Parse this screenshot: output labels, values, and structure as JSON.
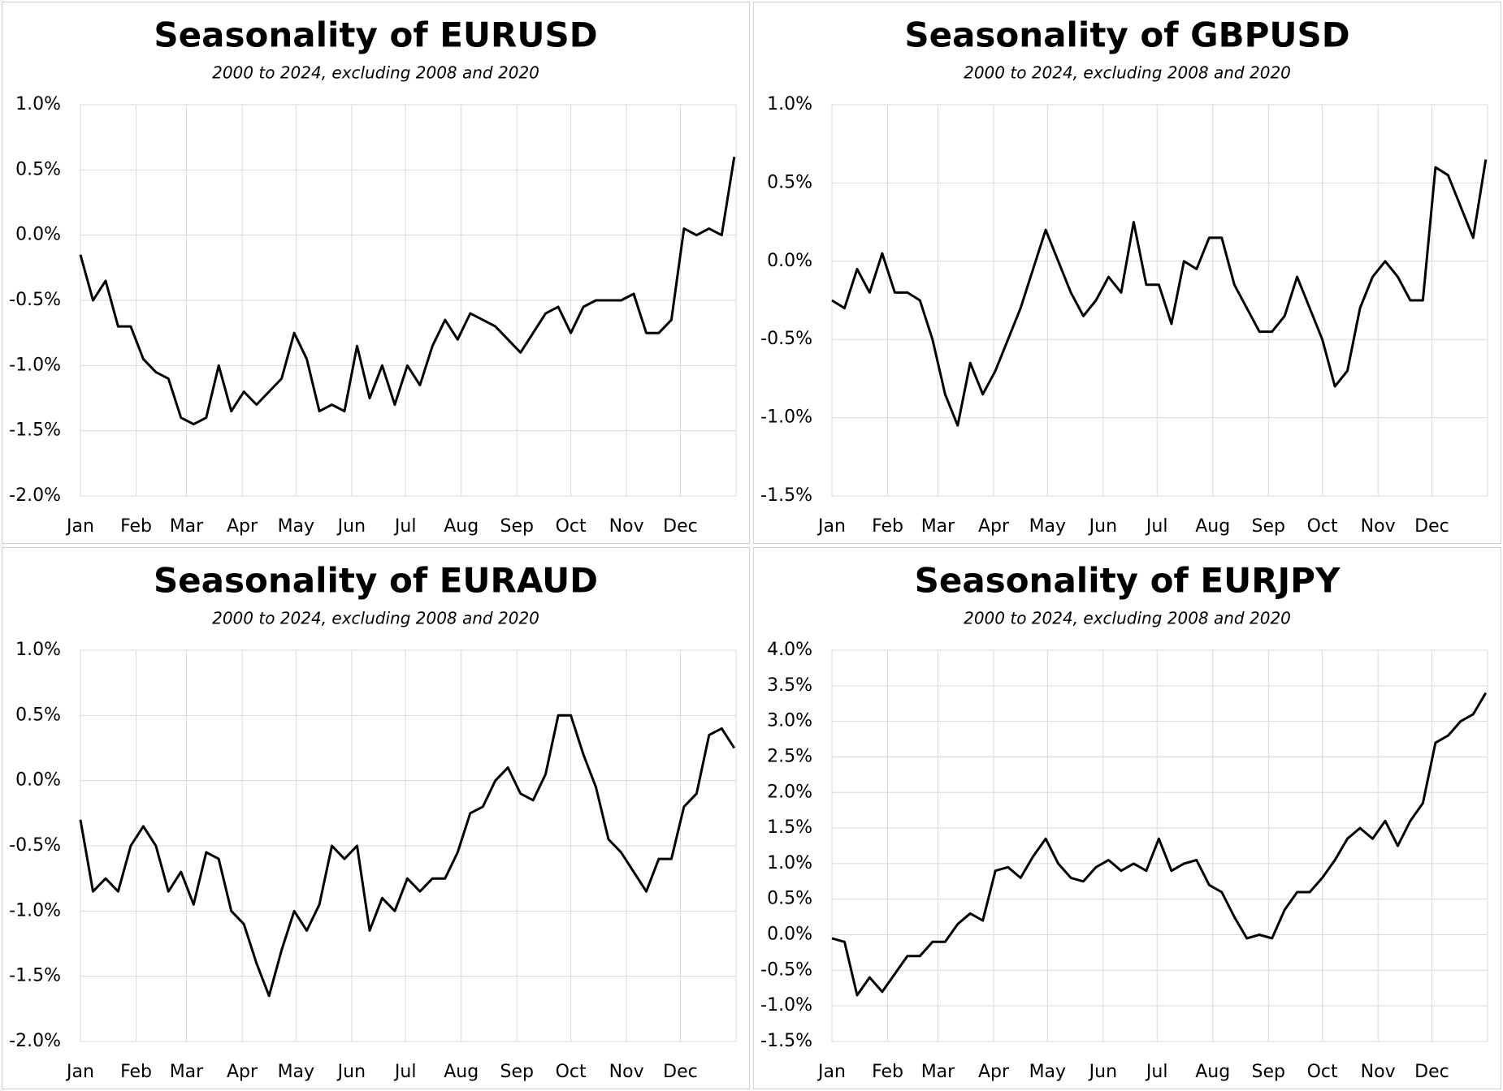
{
  "chart_data": [
    {
      "type": "line",
      "title": "Seasonality of EURUSD",
      "subtitle": "2000 to 2024, excluding 2008 and 2020",
      "color": "#000000",
      "grid": true,
      "x": [
        0,
        7,
        14,
        21,
        28,
        35,
        42,
        49,
        56,
        63,
        70,
        77,
        84,
        91,
        98,
        105,
        112,
        119,
        126,
        133,
        140,
        147,
        154,
        161,
        168,
        175,
        182,
        189,
        196,
        203,
        210,
        217,
        224,
        231,
        238,
        245,
        252,
        259,
        266,
        273,
        280,
        287,
        294,
        301,
        308,
        315,
        322,
        329,
        336,
        343,
        350,
        357,
        364
      ],
      "values": [
        -0.15,
        -0.5,
        -0.35,
        -0.7,
        -0.7,
        -0.95,
        -1.05,
        -1.1,
        -1.4,
        -1.45,
        -1.4,
        -1.0,
        -1.35,
        -1.2,
        -1.3,
        -1.2,
        -1.1,
        -0.75,
        -0.95,
        -1.35,
        -1.3,
        -1.35,
        -0.85,
        -1.25,
        -1.0,
        -1.3,
        -1.0,
        -1.15,
        -0.85,
        -0.65,
        -0.8,
        -0.6,
        -0.65,
        -0.7,
        -0.8,
        -0.9,
        -0.75,
        -0.6,
        -0.55,
        -0.75,
        -0.55,
        -0.5,
        -0.5,
        -0.5,
        -0.45,
        -0.75,
        -0.75,
        -0.65,
        0.05,
        0.0,
        0.05,
        0.0,
        0.6
      ],
      "xlim": [
        0,
        365
      ],
      "xticks": [
        {
          "value": 0,
          "label": "Jan"
        },
        {
          "value": 31,
          "label": "Feb"
        },
        {
          "value": 59,
          "label": "Mar"
        },
        {
          "value": 90,
          "label": "Apr"
        },
        {
          "value": 120,
          "label": "May"
        },
        {
          "value": 151,
          "label": "Jun"
        },
        {
          "value": 181,
          "label": "Jul"
        },
        {
          "value": 212,
          "label": "Aug"
        },
        {
          "value": 243,
          "label": "Sep"
        },
        {
          "value": 273,
          "label": "Oct"
        },
        {
          "value": 304,
          "label": "Nov"
        },
        {
          "value": 334,
          "label": "Dec"
        }
      ],
      "ylim": [
        -2,
        1
      ],
      "yticks": [
        {
          "value": -2,
          "label": "-2.0%"
        },
        {
          "value": -1.5,
          "label": "-1.5%"
        },
        {
          "value": -1,
          "label": "-1.0%"
        },
        {
          "value": -0.5,
          "label": "-0.5%"
        },
        {
          "value": 0,
          "label": "0.0%"
        },
        {
          "value": 0.5,
          "label": "0.5%"
        },
        {
          "value": 1,
          "label": "1.0%"
        }
      ]
    },
    {
      "type": "line",
      "title": "Seasonality of GBPUSD",
      "subtitle": "2000 to 2024, excluding 2008 and 2020",
      "color": "#000000",
      "grid": true,
      "x": [
        0,
        7,
        14,
        21,
        28,
        35,
        42,
        49,
        56,
        63,
        70,
        77,
        84,
        91,
        98,
        105,
        112,
        119,
        126,
        133,
        140,
        147,
        154,
        161,
        168,
        175,
        182,
        189,
        196,
        203,
        210,
        217,
        224,
        231,
        238,
        245,
        252,
        259,
        266,
        273,
        280,
        287,
        294,
        301,
        308,
        315,
        322,
        329,
        336,
        343,
        350,
        357,
        364
      ],
      "values": [
        -0.25,
        -0.3,
        -0.05,
        -0.2,
        0.05,
        -0.2,
        -0.2,
        -0.25,
        -0.5,
        -0.85,
        -1.05,
        -0.65,
        -0.85,
        -0.7,
        -0.5,
        -0.3,
        -0.05,
        0.2,
        0.0,
        -0.2,
        -0.35,
        -0.25,
        -0.1,
        -0.2,
        0.25,
        -0.15,
        -0.15,
        -0.4,
        0.0,
        -0.05,
        0.15,
        0.15,
        -0.15,
        -0.3,
        -0.45,
        -0.45,
        -0.35,
        -0.1,
        -0.3,
        -0.5,
        -0.8,
        -0.7,
        -0.3,
        -0.1,
        0.0,
        -0.1,
        -0.25,
        -0.25,
        0.6,
        0.55,
        0.35,
        0.15,
        0.65
      ],
      "xlim": [
        0,
        365
      ],
      "xticks": [
        {
          "value": 0,
          "label": "Jan"
        },
        {
          "value": 31,
          "label": "Feb"
        },
        {
          "value": 59,
          "label": "Mar"
        },
        {
          "value": 90,
          "label": "Apr"
        },
        {
          "value": 120,
          "label": "May"
        },
        {
          "value": 151,
          "label": "Jun"
        },
        {
          "value": 181,
          "label": "Jul"
        },
        {
          "value": 212,
          "label": "Aug"
        },
        {
          "value": 243,
          "label": "Sep"
        },
        {
          "value": 273,
          "label": "Oct"
        },
        {
          "value": 304,
          "label": "Nov"
        },
        {
          "value": 334,
          "label": "Dec"
        }
      ],
      "ylim": [
        -1.5,
        1
      ],
      "yticks": [
        {
          "value": -1.5,
          "label": "-1.5%"
        },
        {
          "value": -1,
          "label": "-1.0%"
        },
        {
          "value": -0.5,
          "label": "-0.5%"
        },
        {
          "value": 0,
          "label": "0.0%"
        },
        {
          "value": 0.5,
          "label": "0.5%"
        },
        {
          "value": 1,
          "label": "1.0%"
        }
      ]
    },
    {
      "type": "line",
      "title": "Seasonality of EURAUD",
      "subtitle": "2000 to 2024, excluding 2008 and 2020",
      "color": "#000000",
      "grid": true,
      "x": [
        0,
        7,
        14,
        21,
        28,
        35,
        42,
        49,
        56,
        63,
        70,
        77,
        84,
        91,
        98,
        105,
        112,
        119,
        126,
        133,
        140,
        147,
        154,
        161,
        168,
        175,
        182,
        189,
        196,
        203,
        210,
        217,
        224,
        231,
        238,
        245,
        252,
        259,
        266,
        273,
        280,
        287,
        294,
        301,
        308,
        315,
        322,
        329,
        336,
        343,
        350,
        357,
        364
      ],
      "values": [
        -0.3,
        -0.85,
        -0.75,
        -0.85,
        -0.5,
        -0.35,
        -0.5,
        -0.85,
        -0.7,
        -0.95,
        -0.55,
        -0.6,
        -1.0,
        -1.1,
        -1.4,
        -1.65,
        -1.3,
        -1.0,
        -1.15,
        -0.95,
        -0.5,
        -0.6,
        -0.5,
        -1.15,
        -0.9,
        -1.0,
        -0.75,
        -0.85,
        -0.75,
        -0.75,
        -0.55,
        -0.25,
        -0.2,
        0.0,
        0.1,
        -0.1,
        -0.15,
        0.05,
        0.5,
        0.5,
        0.2,
        -0.05,
        -0.45,
        -0.55,
        -0.7,
        -0.85,
        -0.6,
        -0.6,
        -0.2,
        -0.1,
        0.35,
        0.4,
        0.25
      ],
      "xlim": [
        0,
        365
      ],
      "xticks": [
        {
          "value": 0,
          "label": "Jan"
        },
        {
          "value": 31,
          "label": "Feb"
        },
        {
          "value": 59,
          "label": "Mar"
        },
        {
          "value": 90,
          "label": "Apr"
        },
        {
          "value": 120,
          "label": "May"
        },
        {
          "value": 151,
          "label": "Jun"
        },
        {
          "value": 181,
          "label": "Jul"
        },
        {
          "value": 212,
          "label": "Aug"
        },
        {
          "value": 243,
          "label": "Sep"
        },
        {
          "value": 273,
          "label": "Oct"
        },
        {
          "value": 304,
          "label": "Nov"
        },
        {
          "value": 334,
          "label": "Dec"
        }
      ],
      "ylim": [
        -2,
        1
      ],
      "yticks": [
        {
          "value": -2,
          "label": "-2.0%"
        },
        {
          "value": -1.5,
          "label": "-1.5%"
        },
        {
          "value": -1,
          "label": "-1.0%"
        },
        {
          "value": -0.5,
          "label": "-0.5%"
        },
        {
          "value": 0,
          "label": "0.0%"
        },
        {
          "value": 0.5,
          "label": "0.5%"
        },
        {
          "value": 1,
          "label": "1.0%"
        }
      ]
    },
    {
      "type": "line",
      "title": "Seasonality of EURJPY",
      "subtitle": "2000 to 2024, excluding 2008 and 2020",
      "color": "#000000",
      "grid": true,
      "x": [
        0,
        7,
        14,
        21,
        28,
        35,
        42,
        49,
        56,
        63,
        70,
        77,
        84,
        91,
        98,
        105,
        112,
        119,
        126,
        133,
        140,
        147,
        154,
        161,
        168,
        175,
        182,
        189,
        196,
        203,
        210,
        217,
        224,
        231,
        238,
        245,
        252,
        259,
        266,
        273,
        280,
        287,
        294,
        301,
        308,
        315,
        322,
        329,
        336,
        343,
        350,
        357,
        364
      ],
      "values": [
        -0.05,
        -0.1,
        -0.85,
        -0.6,
        -0.8,
        -0.55,
        -0.3,
        -0.3,
        -0.1,
        -0.1,
        0.15,
        0.3,
        0.2,
        0.9,
        0.95,
        0.8,
        1.1,
        1.35,
        1.0,
        0.8,
        0.75,
        0.95,
        1.05,
        0.9,
        1.0,
        0.9,
        1.35,
        0.9,
        1.0,
        1.05,
        0.7,
        0.6,
        0.25,
        -0.05,
        0.0,
        -0.05,
        0.35,
        0.6,
        0.6,
        0.8,
        1.05,
        1.35,
        1.5,
        1.35,
        1.6,
        1.25,
        1.6,
        1.85,
        2.7,
        2.8,
        3.0,
        3.1,
        3.4
      ],
      "xlim": [
        0,
        365
      ],
      "xticks": [
        {
          "value": 0,
          "label": "Jan"
        },
        {
          "value": 31,
          "label": "Feb"
        },
        {
          "value": 59,
          "label": "Mar"
        },
        {
          "value": 90,
          "label": "Apr"
        },
        {
          "value": 120,
          "label": "May"
        },
        {
          "value": 151,
          "label": "Jun"
        },
        {
          "value": 181,
          "label": "Jul"
        },
        {
          "value": 212,
          "label": "Aug"
        },
        {
          "value": 243,
          "label": "Sep"
        },
        {
          "value": 273,
          "label": "Oct"
        },
        {
          "value": 304,
          "label": "Nov"
        },
        {
          "value": 334,
          "label": "Dec"
        }
      ],
      "ylim": [
        -1.5,
        4
      ],
      "yticks": [
        {
          "value": -1.5,
          "label": "-1.5%"
        },
        {
          "value": -1,
          "label": "-1.0%"
        },
        {
          "value": -0.5,
          "label": "-0.5%"
        },
        {
          "value": 0,
          "label": "0.0%"
        },
        {
          "value": 0.5,
          "label": "0.5%"
        },
        {
          "value": 1,
          "label": "1.0%"
        },
        {
          "value": 1.5,
          "label": "1.5%"
        },
        {
          "value": 2,
          "label": "2.0%"
        },
        {
          "value": 2.5,
          "label": "2.5%"
        },
        {
          "value": 3,
          "label": "3.0%"
        },
        {
          "value": 3.5,
          "label": "3.5%"
        },
        {
          "value": 4,
          "label": "4.0%"
        }
      ]
    }
  ]
}
